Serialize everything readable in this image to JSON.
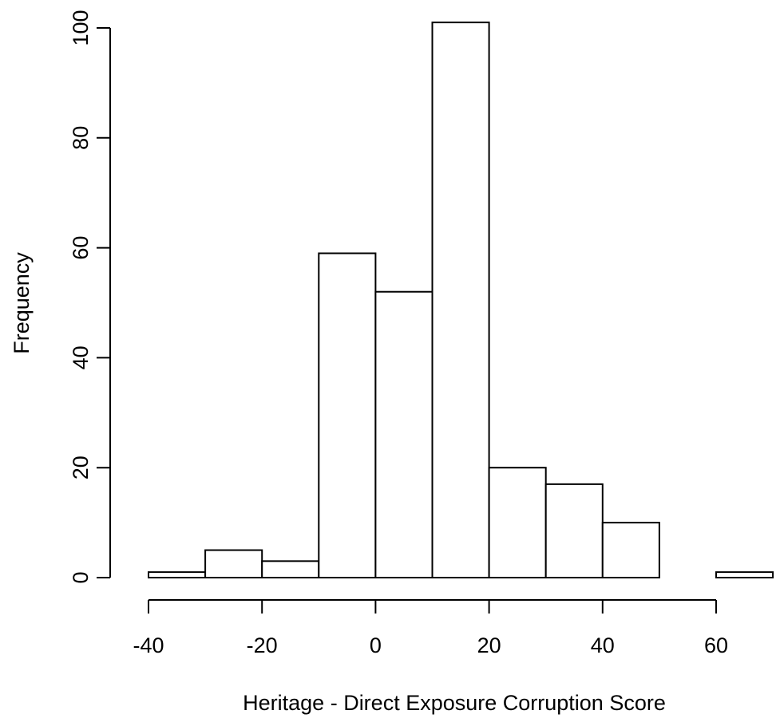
{
  "chart_data": {
    "type": "histogram",
    "title": "",
    "xlabel": "Heritage - Direct Exposure Corruption Score",
    "ylabel": "Frequency",
    "bins": [
      {
        "start": -40,
        "end": -30,
        "count": 1
      },
      {
        "start": -30,
        "end": -20,
        "count": 5
      },
      {
        "start": -20,
        "end": -10,
        "count": 3
      },
      {
        "start": -10,
        "end": 0,
        "count": 59
      },
      {
        "start": 0,
        "end": 10,
        "count": 52
      },
      {
        "start": 10,
        "end": 20,
        "count": 101
      },
      {
        "start": 20,
        "end": 30,
        "count": 20
      },
      {
        "start": 30,
        "end": 40,
        "count": 17
      },
      {
        "start": 40,
        "end": 50,
        "count": 10
      },
      {
        "start": 50,
        "end": 60,
        "count": 0
      },
      {
        "start": 60,
        "end": 70,
        "count": 1
      }
    ],
    "x_ticks": [
      -40,
      -20,
      0,
      20,
      40,
      60
    ],
    "y_ticks": [
      0,
      20,
      40,
      60,
      80,
      100
    ],
    "xlim": [
      -40,
      70
    ],
    "ylim": [
      0,
      101
    ],
    "grid": false,
    "legend": "none"
  }
}
